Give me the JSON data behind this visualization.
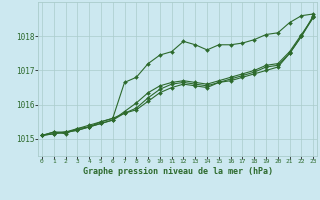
{
  "title": "Graphe pression niveau de la mer (hPa)",
  "background_color": "#cce8f0",
  "grid_color": "#aacccc",
  "line_color": "#2d6a2d",
  "x_ticks": [
    0,
    1,
    2,
    3,
    4,
    5,
    6,
    7,
    8,
    9,
    10,
    11,
    12,
    13,
    14,
    15,
    16,
    17,
    18,
    19,
    20,
    21,
    22,
    23
  ],
  "ylim": [
    1014.5,
    1019.0
  ],
  "yticks": [
    1015,
    1016,
    1017,
    1018
  ],
  "lines": [
    [
      1015.1,
      1015.2,
      1015.15,
      1015.3,
      1015.35,
      1015.5,
      1015.6,
      1016.65,
      1016.8,
      1017.2,
      1017.45,
      1017.55,
      1017.85,
      1017.75,
      1017.6,
      1017.75,
      1017.75,
      1017.8,
      1017.9,
      1018.05,
      1018.1,
      1018.4,
      1018.6,
      1018.65
    ],
    [
      1015.1,
      1015.2,
      1015.2,
      1015.3,
      1015.4,
      1015.5,
      1015.6,
      1015.75,
      1015.85,
      1016.1,
      1016.35,
      1016.5,
      1016.6,
      1016.55,
      1016.5,
      1016.65,
      1016.7,
      1016.8,
      1016.9,
      1017.0,
      1017.1,
      1017.5,
      1018.0,
      1018.6
    ],
    [
      1015.1,
      1015.15,
      1015.2,
      1015.25,
      1015.35,
      1015.45,
      1015.55,
      1015.8,
      1016.05,
      1016.35,
      1016.55,
      1016.65,
      1016.7,
      1016.65,
      1016.6,
      1016.7,
      1016.8,
      1016.9,
      1017.0,
      1017.15,
      1017.2,
      1017.55,
      1018.05,
      1018.55
    ],
    [
      1015.1,
      1015.15,
      1015.2,
      1015.25,
      1015.35,
      1015.45,
      1015.55,
      1015.75,
      1015.9,
      1016.2,
      1016.45,
      1016.6,
      1016.65,
      1016.6,
      1016.55,
      1016.65,
      1016.75,
      1016.85,
      1016.95,
      1017.1,
      1017.15,
      1017.5,
      1018.0,
      1018.55
    ]
  ]
}
